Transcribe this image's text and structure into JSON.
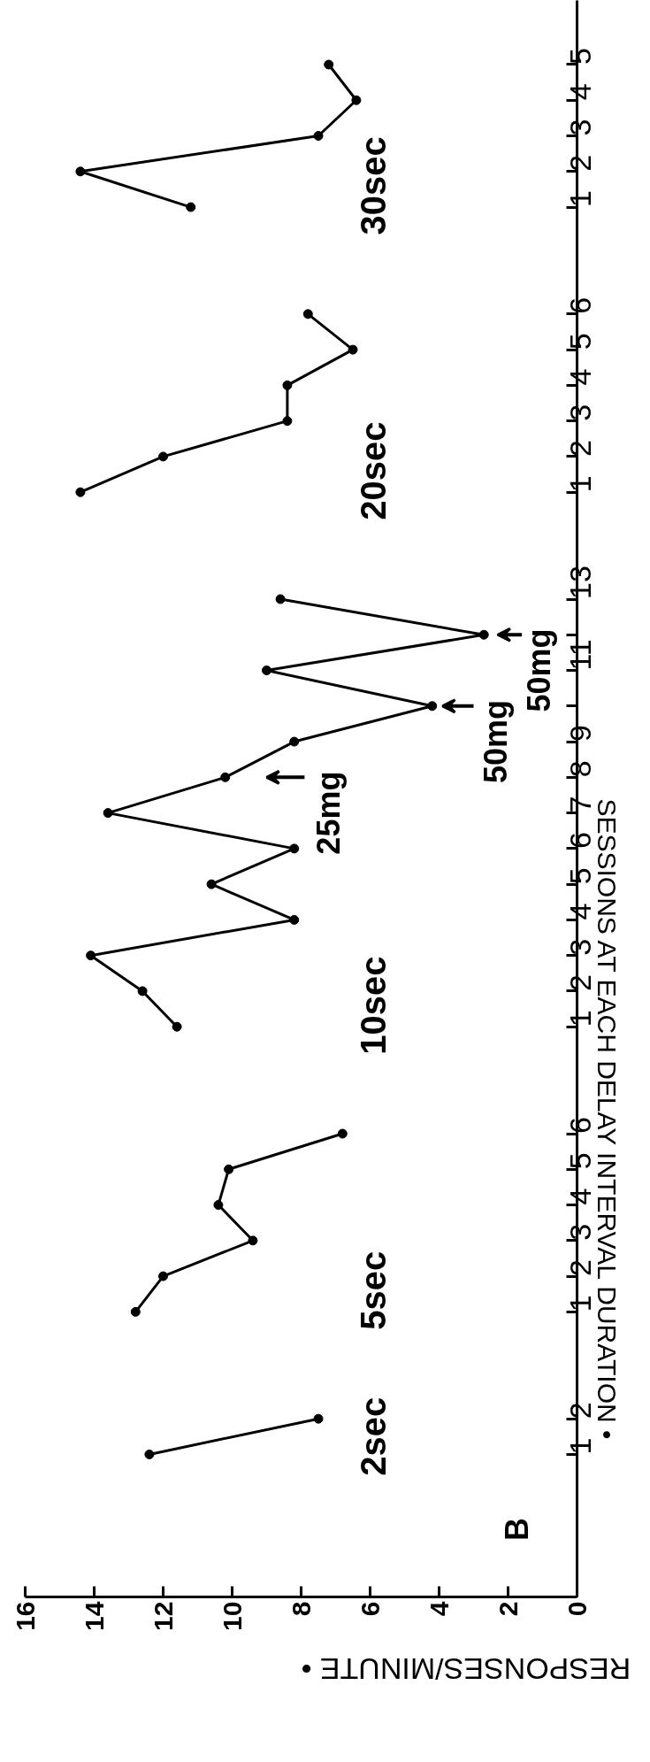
{
  "chart_data": {
    "type": "line",
    "orientation": "horizontal",
    "xlabel": "RESPONSES/MINUTE •",
    "ylabel": "SESSIONS AT EACH DELAY INTERVAL DURATION •",
    "categories": [
      null,
      "5",
      "4",
      "3",
      "2",
      "1",
      null,
      null,
      "6",
      "5",
      "4",
      "3",
      "2",
      "1",
      null,
      null,
      "13",
      null,
      "11",
      null,
      "9",
      "8",
      "7",
      "6",
      "5",
      "4",
      "3",
      "2",
      "1",
      null,
      null,
      "6",
      "5",
      "4",
      "3",
      "2",
      "1",
      null,
      null,
      "2",
      "1",
      null,
      null,
      null
    ],
    "series": [
      {
        "name": "30sec",
        "color": "#000000",
        "values": [
          null,
          7.2,
          6.4,
          7.5,
          14.4,
          11.2,
          null,
          null,
          null,
          null,
          null,
          null,
          null,
          null,
          null,
          null,
          null,
          null,
          null,
          null,
          null,
          null,
          null,
          null,
          null,
          null,
          null,
          null,
          null,
          null,
          null,
          null,
          null,
          null,
          null,
          null,
          null,
          null,
          null,
          null,
          null,
          null,
          null,
          null
        ]
      },
      {
        "name": "20sec",
        "color": "#000000",
        "values": [
          null,
          null,
          null,
          null,
          null,
          null,
          null,
          null,
          7.8,
          6.5,
          8.4,
          8.4,
          12.0,
          14.4,
          null,
          null,
          null,
          null,
          null,
          null,
          null,
          null,
          null,
          null,
          null,
          null,
          null,
          null,
          null,
          null,
          null,
          null,
          null,
          null,
          null,
          null,
          null,
          null,
          null,
          null,
          null,
          null,
          null,
          null
        ]
      },
      {
        "name": "10sec",
        "color": "#000000",
        "values": [
          null,
          null,
          null,
          null,
          null,
          null,
          null,
          null,
          null,
          null,
          null,
          null,
          null,
          null,
          null,
          null,
          8.6,
          2.7,
          9.0,
          4.2,
          8.2,
          10.2,
          13.6,
          8.2,
          10.6,
          8.2,
          14.1,
          12.6,
          11.6,
          null,
          null,
          null,
          null,
          null,
          null,
          null,
          null,
          null,
          null,
          null,
          null,
          null,
          null,
          null
        ]
      },
      {
        "name": "5sec",
        "color": "#000000",
        "values": [
          null,
          null,
          null,
          null,
          null,
          null,
          null,
          null,
          null,
          null,
          null,
          null,
          null,
          null,
          null,
          null,
          null,
          null,
          null,
          null,
          null,
          null,
          null,
          null,
          null,
          null,
          null,
          null,
          null,
          null,
          null,
          6.8,
          10.1,
          10.4,
          9.4,
          12.0,
          12.8,
          null,
          null,
          null,
          null,
          null,
          null,
          null
        ]
      },
      {
        "name": "2sec",
        "color": "#000000",
        "values": [
          null,
          null,
          null,
          null,
          null,
          null,
          null,
          null,
          null,
          null,
          null,
          null,
          null,
          null,
          null,
          null,
          null,
          null,
          null,
          null,
          null,
          null,
          null,
          null,
          null,
          null,
          null,
          null,
          null,
          null,
          null,
          null,
          null,
          null,
          null,
          null,
          null,
          null,
          null,
          7.5,
          12.4,
          null,
          null,
          null
        ]
      }
    ],
    "xlim": [
      16,
      0
    ],
    "xticks": [
      0,
      2,
      4,
      6,
      8,
      10,
      12,
      14,
      16
    ],
    "marker": "circle",
    "annotations": [
      "25mg",
      "50mg",
      "50mg",
      "B"
    ]
  }
}
